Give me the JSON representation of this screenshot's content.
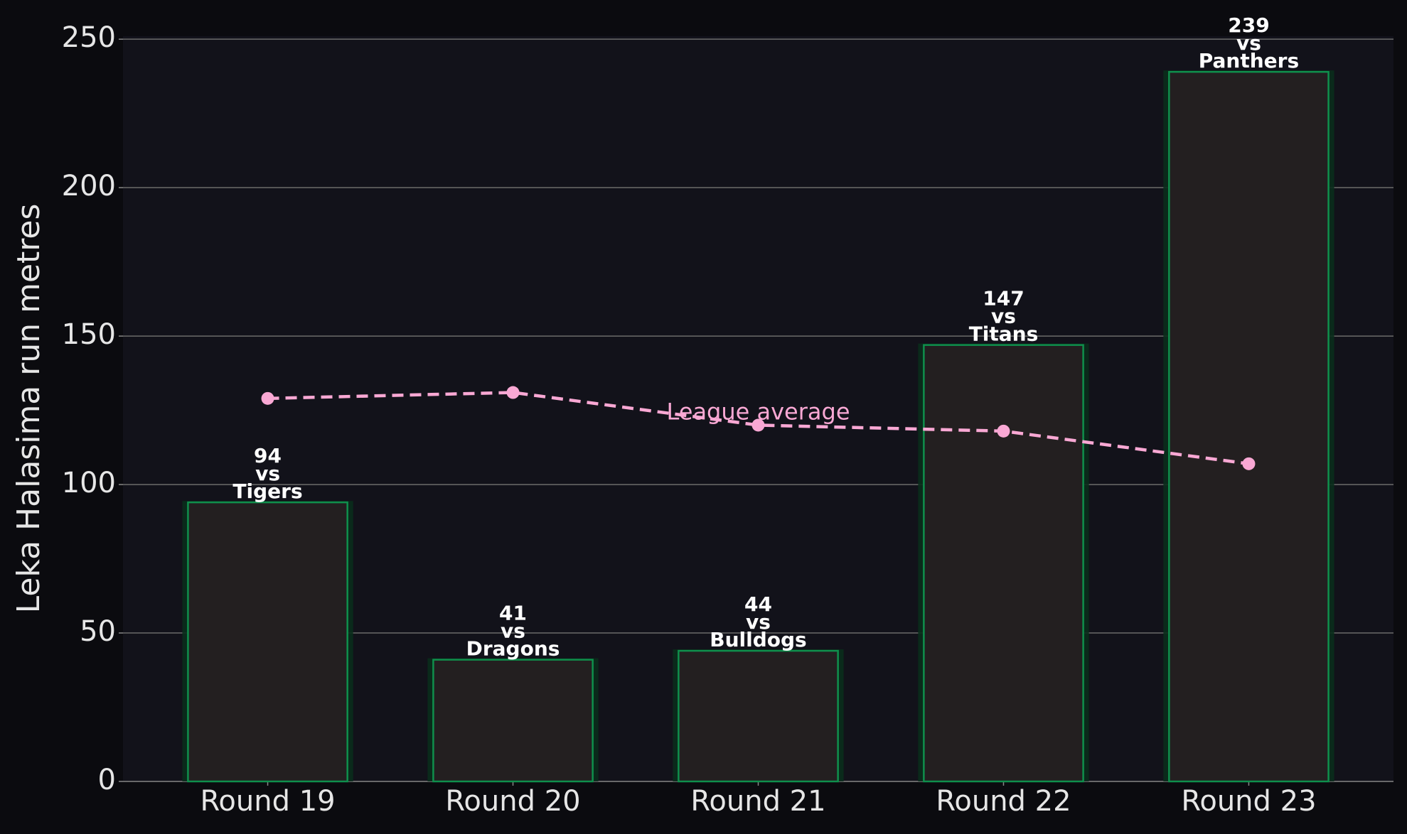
{
  "chart_data": {
    "type": "bar",
    "y_label": "Leka Halasima run metres",
    "categories": [
      "Round 19",
      "Round 20",
      "Round 21",
      "Round 22",
      "Round 23"
    ],
    "values": [
      94,
      41,
      44,
      147,
      239
    ],
    "value_labels": [
      [
        "94",
        "vs",
        "Tigers"
      ],
      [
        "41",
        "vs",
        "Dragons"
      ],
      [
        "44",
        "vs",
        "Bulldogs"
      ],
      [
        "147",
        "vs",
        "Titans"
      ],
      [
        "239",
        "vs",
        "Panthers"
      ]
    ],
    "color": "#231f20",
    "edge_color": "#0f8f4c",
    "line": {
      "name": "League average",
      "color": "#f9a8d4",
      "values": [
        129,
        131,
        120,
        118,
        107
      ]
    },
    "ylim": [
      0,
      251
    ],
    "yticks": [
      0,
      50,
      100,
      150,
      200,
      250
    ],
    "grid": true
  }
}
